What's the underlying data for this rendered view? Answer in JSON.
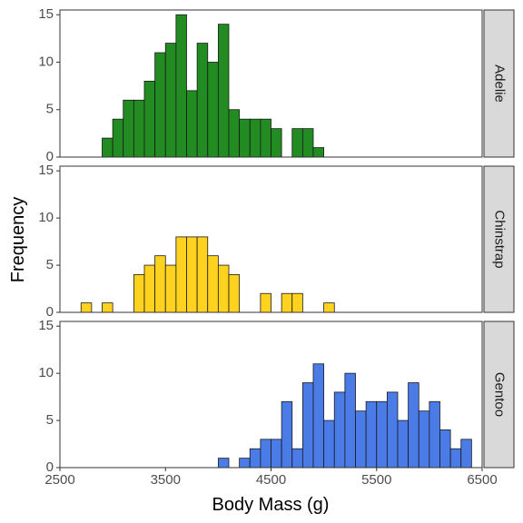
{
  "chart_data": {
    "type": "bar",
    "subtype": "faceted-histogram",
    "xlabel": "Body Mass (g)",
    "ylabel": "Frequency",
    "xlim": [
      2500,
      6500
    ],
    "ylim": [
      0,
      15.5
    ],
    "x_ticks": [
      2500,
      3500,
      4500,
      5500,
      6500
    ],
    "y_ticks": [
      0,
      5,
      10,
      15
    ],
    "bin_start": 2700,
    "bin_width": 100,
    "grid": false,
    "legend": "none",
    "facet_layout": "rows",
    "strip_position": "right",
    "series": [
      {
        "name": "Adelie",
        "color": "#228B22",
        "values": [
          0,
          0,
          2,
          4,
          6,
          6,
          8,
          11,
          12,
          15,
          7,
          12,
          10,
          14,
          5,
          4,
          4,
          4,
          3,
          0,
          3,
          3,
          1,
          0,
          0,
          0,
          0,
          0,
          0,
          0,
          0,
          0,
          0,
          0,
          0,
          0,
          0
        ]
      },
      {
        "name": "Chinstrap",
        "color": "#FFD21F",
        "values": [
          1,
          0,
          1,
          0,
          0,
          4,
          5,
          6,
          5,
          8,
          8,
          8,
          6,
          5,
          4,
          0,
          0,
          2,
          0,
          2,
          2,
          0,
          0,
          1,
          0,
          0,
          0,
          0,
          0,
          0,
          0,
          0,
          0,
          0,
          0,
          0,
          0
        ]
      },
      {
        "name": "Gentoo",
        "color": "#4A7BE6",
        "values": [
          0,
          0,
          0,
          0,
          0,
          0,
          0,
          0,
          0,
          0,
          0,
          0,
          0,
          1,
          0,
          1,
          2,
          3,
          3,
          7,
          2,
          9,
          11,
          5,
          8,
          10,
          6,
          7,
          7,
          8,
          5,
          9,
          6,
          7,
          4,
          2,
          3
        ]
      }
    ]
  },
  "style": {
    "outline_color": "#1a1a1a",
    "panel_border_color": "#333333",
    "strip_fill": "#d9d9d9",
    "baseline_color": "#000000"
  }
}
